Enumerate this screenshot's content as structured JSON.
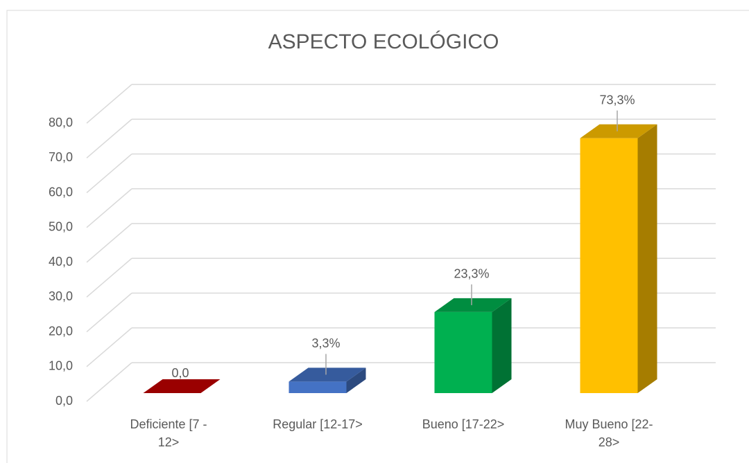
{
  "chart_data": {
    "type": "bar3d",
    "title": "ASPECTO ECOLÓGICO",
    "categories": [
      "Deficiente [7 - 12>",
      "Regular [12-17>",
      "Bueno [17-22>",
      "Muy Bueno [22-28>"
    ],
    "values": [
      0,
      3.3,
      23.3,
      73.3
    ],
    "value_labels": [
      "0,0",
      "3,3%",
      "23,3%",
      "73,3%"
    ],
    "colors": [
      "#c00000",
      "#4472c4",
      "#00b050",
      "#ffc000"
    ],
    "ylim": [
      0,
      80
    ],
    "yticks": [
      {
        "value": 0,
        "label": "0,0"
      },
      {
        "value": 10,
        "label": "10,0"
      },
      {
        "value": 20,
        "label": "20,0"
      },
      {
        "value": 30,
        "label": "30,0"
      },
      {
        "value": 40,
        "label": "40,0"
      },
      {
        "value": 50,
        "label": "50,0"
      },
      {
        "value": 60,
        "label": "60,0"
      },
      {
        "value": 70,
        "label": "70,0"
      },
      {
        "value": 80,
        "label": "80,0"
      }
    ],
    "grid": true
  }
}
